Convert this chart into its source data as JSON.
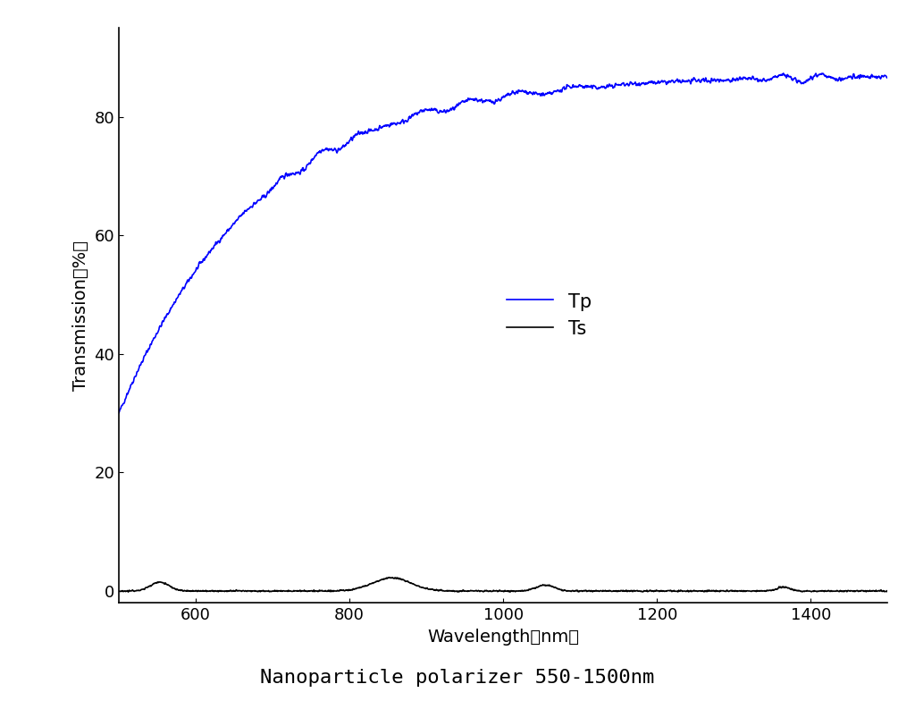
{
  "title": "Nanoparticle polarizer 550-1500nm",
  "xlabel": "Wavelength（nm）",
  "ylabel": "Transmission（%）",
  "xlim": [
    500,
    1500
  ],
  "ylim": [
    -2,
    95
  ],
  "yticks": [
    0,
    20,
    40,
    60,
    80
  ],
  "xticks": [
    600,
    800,
    1000,
    1200,
    1400
  ],
  "tp_color": "#0000FF",
  "ts_color": "#000000",
  "legend_labels": [
    "Tp",
    "Ts"
  ],
  "background_color": "#FFFFFF",
  "line_width": 1.2,
  "title_fontsize": 16,
  "axis_fontsize": 14,
  "tick_fontsize": 13
}
